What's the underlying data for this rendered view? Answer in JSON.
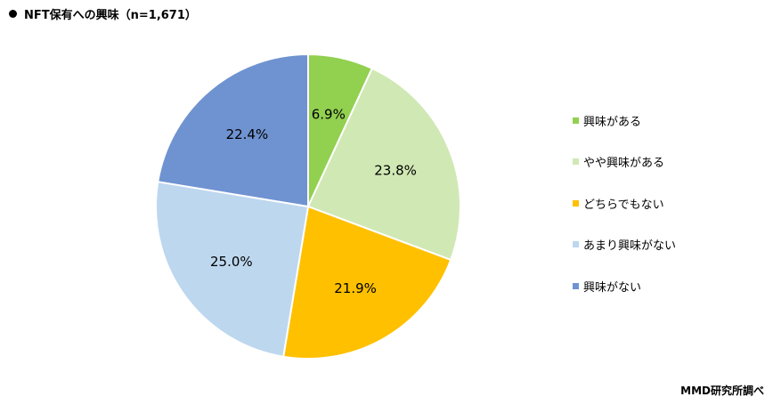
{
  "title": "NFT保有への興味（n=1,671）",
  "source": "MMD研究所調べ",
  "chart_data": {
    "type": "pie",
    "start_angle_deg": 0,
    "direction": "clockwise",
    "legend_position": "right",
    "slices": [
      {
        "label": "興味がある",
        "value": 6.9,
        "display": "6.9%",
        "color": "#92d050"
      },
      {
        "label": "やや興味がある",
        "value": 23.8,
        "display": "23.8%",
        "color": "#d0e8b4"
      },
      {
        "label": "どちらでもない",
        "value": 21.9,
        "display": "21.9%",
        "color": "#ffc000"
      },
      {
        "label": "あまり興味がない",
        "value": 25.0,
        "display": "25.0%",
        "color": "#bdd7ee"
      },
      {
        "label": "興味がない",
        "value": 22.4,
        "display": "22.4%",
        "color": "#6f93d1"
      }
    ]
  }
}
